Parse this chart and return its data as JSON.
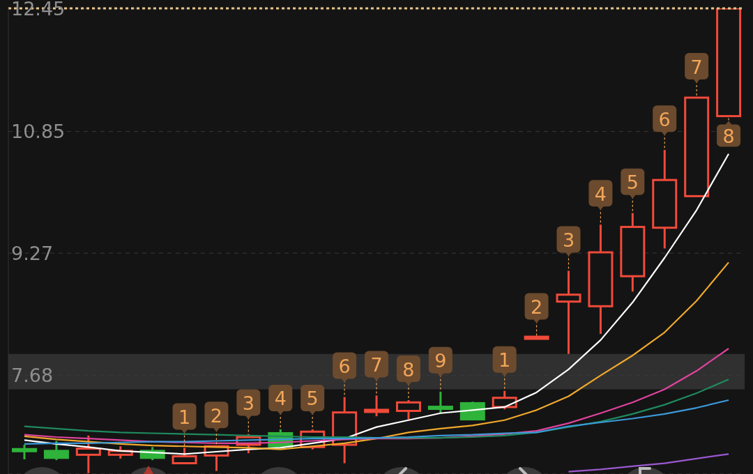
{
  "chart_data": {
    "type": "candlestick",
    "categories": [
      null,
      null,
      null,
      null,
      null,
      null,
      null,
      null,
      null,
      null,
      null,
      null,
      null,
      null,
      null,
      null,
      null,
      null,
      null,
      null,
      null,
      null,
      null
    ],
    "value_labels": [
      null,
      null,
      null,
      null,
      null,
      "1",
      "2",
      "3",
      "4",
      "5",
      "6",
      "7",
      "8",
      "9",
      null,
      "1",
      "2",
      "3",
      "4",
      "5",
      "6",
      "7",
      "8"
    ],
    "ohlc": [
      [
        6.71,
        6.78,
        6.59,
        6.7
      ],
      [
        6.7,
        6.83,
        6.58,
        6.61
      ],
      [
        6.65,
        6.9,
        6.41,
        6.73
      ],
      [
        6.65,
        6.76,
        6.6,
        6.7
      ],
      [
        6.7,
        6.75,
        6.58,
        6.61
      ],
      [
        6.54,
        6.74,
        6.54,
        6.63
      ],
      [
        6.64,
        6.76,
        6.44,
        6.76
      ],
      [
        6.78,
        6.92,
        6.67,
        6.88
      ],
      [
        6.93,
        6.98,
        6.74,
        6.76
      ],
      [
        6.75,
        6.98,
        6.72,
        6.95
      ],
      [
        6.78,
        7.4,
        6.54,
        7.2
      ],
      [
        7.2,
        7.42,
        7.15,
        7.22
      ],
      [
        7.22,
        7.36,
        7.11,
        7.33
      ],
      [
        7.26,
        7.47,
        7.19,
        7.25
      ],
      [
        7.32,
        7.34,
        7.11,
        7.11
      ],
      [
        7.27,
        7.48,
        7.24,
        7.39
      ],
      [
        8.17,
        8.17,
        8.17,
        8.17
      ],
      [
        8.64,
        9.04,
        7.96,
        8.73
      ],
      [
        8.58,
        9.64,
        8.22,
        9.28
      ],
      [
        8.97,
        9.79,
        8.77,
        9.61
      ],
      [
        9.6,
        10.61,
        9.33,
        10.22
      ],
      [
        10.01,
        11.29,
        10.01,
        11.29
      ],
      [
        11.05,
        12.45,
        11.05,
        12.45
      ]
    ],
    "colors": [
      "#2fb33b",
      "#2fb33b",
      "#f04a3a",
      "#f04a3a",
      "#2fb33b",
      "#f04a3a",
      "#f04a3a",
      "#f04a3a",
      "#2fb33b",
      "#f04a3a",
      "#f04a3a",
      "#f04a3a",
      "#f04a3a",
      "#2fb33b",
      "#2fb33b",
      "#f04a3a",
      "#f04a3a",
      "#f04a3a",
      "#f04a3a",
      "#f04a3a",
      "#f04a3a",
      "#f04a3a",
      "#f04a3a"
    ],
    "series": [
      {
        "type": "line",
        "color": "#ffffff",
        "values": [
          6.84,
          6.79,
          6.75,
          6.7,
          6.68,
          6.66,
          6.69,
          6.72,
          6.74,
          6.8,
          6.86,
          7.01,
          7.1,
          7.19,
          7.23,
          7.27,
          7.46,
          7.76,
          8.14,
          8.63,
          9.21,
          9.83,
          10.56
        ]
      },
      {
        "type": "line",
        "color": "#f0a92c",
        "values": [
          6.89,
          6.85,
          6.82,
          6.79,
          6.77,
          6.76,
          6.75,
          6.74,
          6.72,
          6.76,
          6.8,
          6.86,
          6.94,
          6.99,
          7.03,
          7.1,
          7.23,
          7.41,
          7.68,
          7.94,
          8.24,
          8.65,
          9.15
        ]
      },
      {
        "type": "line",
        "color": "#e0449e",
        "values": [
          6.91,
          6.88,
          6.86,
          6.84,
          6.82,
          6.81,
          6.8,
          6.8,
          6.81,
          6.83,
          6.85,
          6.86,
          6.86,
          6.87,
          6.89,
          6.92,
          6.96,
          7.06,
          7.19,
          7.33,
          7.5,
          7.74,
          8.03
        ]
      },
      {
        "type": "line",
        "color": "#1f8a5e",
        "values": [
          7.02,
          6.99,
          6.96,
          6.94,
          6.93,
          6.92,
          6.91,
          6.9,
          6.89,
          6.88,
          6.88,
          6.87,
          6.87,
          6.87,
          6.88,
          6.9,
          6.94,
          7.01,
          7.08,
          7.18,
          7.3,
          7.45,
          7.63
        ]
      },
      {
        "type": "line",
        "color": "#3b9ad9",
        "values": [
          6.79,
          6.8,
          6.8,
          6.81,
          6.82,
          6.82,
          6.83,
          6.84,
          6.85,
          6.86,
          6.86,
          6.87,
          6.88,
          6.9,
          6.91,
          6.93,
          6.94,
          7.02,
          7.07,
          7.12,
          7.18,
          7.26,
          7.36
        ]
      },
      {
        "type": "line",
        "color": "#9b59d0",
        "values": [
          null,
          null,
          null,
          null,
          null,
          null,
          null,
          null,
          null,
          null,
          null,
          null,
          null,
          null,
          null,
          null,
          null,
          6.43,
          6.46,
          6.5,
          6.54,
          6.6,
          6.66
        ]
      }
    ],
    "ylim": [
      6.4,
      12.45
    ],
    "yticks": [
      7.68,
      9.27,
      10.85,
      12.45
    ],
    "tick_labels": "y",
    "grid": "y",
    "ref_lines": [
      {
        "axis": "y",
        "value": 12.45,
        "color": "#e8c48a",
        "line_style": "dotted"
      }
    ],
    "bands": [
      {
        "axis": "y",
        "from": 7.5,
        "to": 7.96,
        "color": "#3a3a3a"
      }
    ]
  }
}
